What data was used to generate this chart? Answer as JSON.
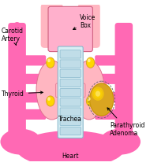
{
  "bg_color": "#ffffff",
  "pink_main": "#FF69B4",
  "pink_light": "#FFB6C1",
  "pink_pale": "#FFC8D8",
  "gold_dark": "#C8960C",
  "gold_mid": "#DAA520",
  "gold_light": "#FFD700",
  "gold_shine": "#FFEE88",
  "trachea_bg": "#D8EEF4",
  "trachea_ring": "#C0DDE8",
  "trachea_outline": "#88B8CC",
  "voicebox_fill": "#FFB0CC",
  "label_fs": 5.5,
  "labels": {
    "carotid": "Carotid\nArtery",
    "voicebox": "Voice\nBox",
    "thyroid": "Thyroid",
    "trachea": "Trachea",
    "parathyroid": "Parathyroid\nAdenoma",
    "heart": "Heart"
  }
}
